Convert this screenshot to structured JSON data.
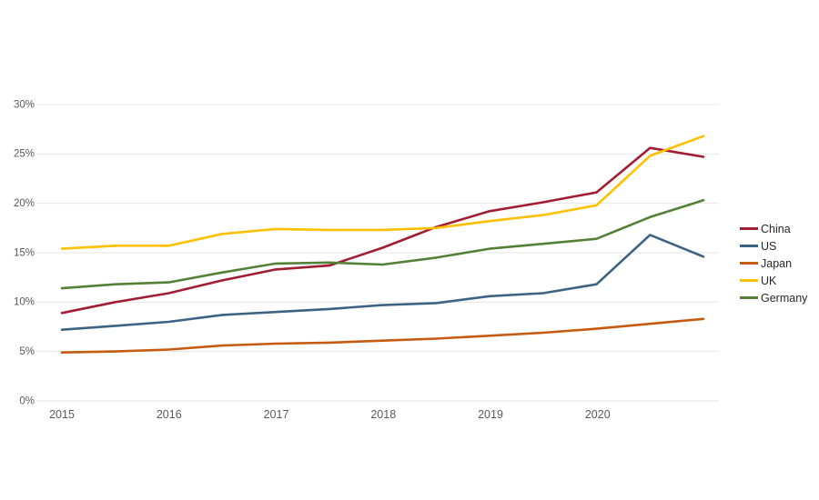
{
  "chart_data": {
    "type": "line",
    "title": "",
    "xlabel": "",
    "ylabel": "",
    "x": [
      2015,
      2015.5,
      2016,
      2016.5,
      2017,
      2017.5,
      2018,
      2018.5,
      2019,
      2019.5,
      2020,
      2020.5,
      2021
    ],
    "x_tick_labels": [
      "2015",
      "2016",
      "2017",
      "2018",
      "2019",
      "2020"
    ],
    "x_tick_years": [
      2015,
      2016,
      2017,
      2018,
      2019,
      2020
    ],
    "y_tick_labels": [
      "0%",
      "5%",
      "10%",
      "15%",
      "20%",
      "25%",
      "30%"
    ],
    "y_tick_values": [
      0,
      5,
      10,
      15,
      20,
      25,
      30
    ],
    "ylim": [
      0,
      30
    ],
    "xlim": [
      2015,
      2021
    ],
    "grid": "horizontal-only",
    "gridline_color": "#e6e6e6",
    "background_color": "#ffffff",
    "legend_position": "right",
    "series": [
      {
        "name": "China",
        "color": "#a11d33",
        "values": [
          8.9,
          10.0,
          10.9,
          12.2,
          13.3,
          13.7,
          15.5,
          17.6,
          19.2,
          20.1,
          21.1,
          25.6,
          24.7
        ]
      },
      {
        "name": "US",
        "color": "#3d6384",
        "values": [
          7.2,
          7.6,
          8.0,
          8.7,
          9.0,
          9.3,
          9.7,
          9.9,
          10.6,
          10.9,
          11.8,
          16.8,
          14.6
        ]
      },
      {
        "name": "Japan",
        "color": "#c55a11",
        "values": [
          4.9,
          5.0,
          5.2,
          5.6,
          5.8,
          5.9,
          6.1,
          6.3,
          6.6,
          6.9,
          7.3,
          7.8,
          8.3
        ]
      },
      {
        "name": "UK",
        "color": "#ffc000",
        "values": [
          15.4,
          15.7,
          15.7,
          16.9,
          17.4,
          17.3,
          17.3,
          17.5,
          18.2,
          18.8,
          19.8,
          24.8,
          26.8
        ]
      },
      {
        "name": "Germany",
        "color": "#538135",
        "values": [
          11.4,
          11.8,
          12.0,
          13.0,
          13.9,
          14.0,
          13.8,
          14.5,
          15.4,
          15.9,
          16.4,
          18.6,
          20.3
        ]
      }
    ]
  }
}
